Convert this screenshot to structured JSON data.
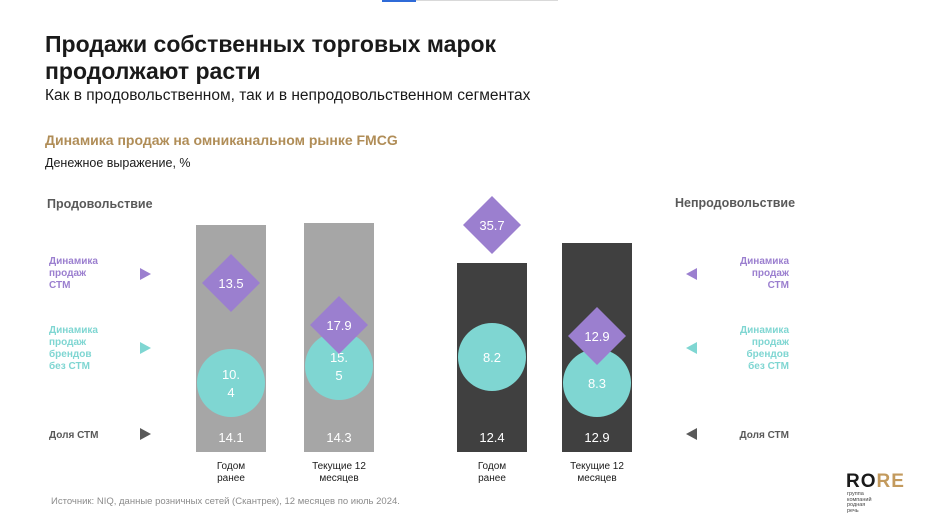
{
  "header": {
    "title_line1": "Продажи собственных торговых марок",
    "title_line2": "продолжают расти",
    "subtitle": "Как в продовольственном, так и в непродовольственном сегментах"
  },
  "chart_title": "Динамика продаж на омниканальном рынке FMCG",
  "unit_label": "Денежное выражение, %",
  "segments": {
    "left": "Продовольствие",
    "right": "Непродовольствие"
  },
  "legend": [
    {
      "label": "Динамика\nпродаж\nСТМ",
      "color": "#9b7fcf",
      "marker": "diamond"
    },
    {
      "label": "Динамика\nпродаж\nбрендов\nбез СТМ",
      "color": "#7fd6d2",
      "marker": "circle"
    },
    {
      "label": "Доля СТМ",
      "color": "#595959",
      "marker": "bar"
    }
  ],
  "chart_data": {
    "type": "bar",
    "categories": [
      "Годом ранее",
      "Текущие 12 месяцев",
      "Годом ранее",
      "Текущие 12 месяцев"
    ],
    "groups": [
      "Продовольствие",
      "Продовольствие",
      "Непродовольствие",
      "Непродовольствие"
    ],
    "series": [
      {
        "name": "Доля СТМ",
        "values": [
          14.1,
          14.3,
          12.4,
          12.9
        ],
        "colors": [
          "#a6a6a6",
          "#a6a6a6",
          "#404040",
          "#404040"
        ]
      },
      {
        "name": "Динамика продаж СТМ",
        "values": [
          13.5,
          17.9,
          35.7,
          12.9
        ],
        "labels": [
          "13.5",
          "17.9",
          "35.7",
          "12.9"
        ],
        "color": "#9b7fcf",
        "marker": "diamond"
      },
      {
        "name": "Динамика продаж брендов без СТМ",
        "values": [
          10.4,
          15.5,
          8.2,
          8.3
        ],
        "labels": [
          "10.\n4",
          "15.\n5",
          "8.2",
          "8.3"
        ],
        "color": "#7fd6d2",
        "marker": "circle"
      }
    ]
  },
  "x_labels": [
    "Годом\nранее",
    "Текущие 12\nмесяцев",
    "Годом\nранее",
    "Текущие 12\nмесяцев"
  ],
  "source": "Источник: NIQ, данные розничных сетей (Скантрек), 12 месяцев по июль 2024.",
  "logo": {
    "text_ro": "RO",
    "text_re": "RE",
    "subtitle": "группа\nкомпаний\nродная\nречь",
    "colors": {
      "ro": "#1a1a1a",
      "re": "#c39a5d"
    }
  },
  "colors": {
    "accent": "#b08d57",
    "food_bar": "#a6a6a6",
    "nonfood_bar": "#404040",
    "stm": "#9b7fcf",
    "brands": "#7fd6d2"
  }
}
